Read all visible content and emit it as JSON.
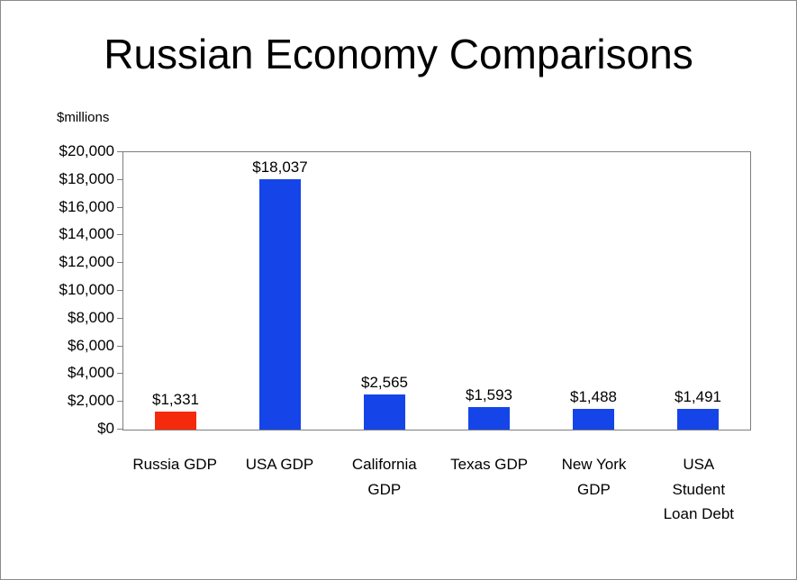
{
  "chart_data": {
    "type": "bar",
    "title": "Russian Economy Comparisons",
    "units_label": "$millions",
    "categories": [
      "Russia GDP",
      "USA GDP",
      "California GDP",
      "Texas GDP",
      "New York GDP",
      "USA Student Loan Debt"
    ],
    "category_display": [
      "Russia GDP",
      "USA GDP",
      "California\nGDP",
      "Texas GDP",
      "New York\nGDP",
      "USA\nStudent\nLoan Debt"
    ],
    "values": [
      1331,
      18037,
      2565,
      1593,
      1488,
      1491
    ],
    "value_labels": [
      "$1,331",
      "$18,037",
      "$2,565",
      "$1,593",
      "$1,488",
      "$1,491"
    ],
    "bar_colors": [
      "#f52a0c",
      "#1545e8",
      "#1545e8",
      "#1545e8",
      "#1545e8",
      "#1545e8"
    ],
    "ylim": [
      0,
      20000
    ],
    "y_ticks": [
      {
        "value": 0,
        "label": "$0"
      },
      {
        "value": 2000,
        "label": "$2,000"
      },
      {
        "value": 4000,
        "label": "$4,000"
      },
      {
        "value": 6000,
        "label": "$6,000"
      },
      {
        "value": 8000,
        "label": "$8,000"
      },
      {
        "value": 10000,
        "label": "$10,000"
      },
      {
        "value": 12000,
        "label": "$12,000"
      },
      {
        "value": 14000,
        "label": "$14,000"
      },
      {
        "value": 16000,
        "label": "$16,000"
      },
      {
        "value": 18000,
        "label": "$18,000"
      },
      {
        "value": 20000,
        "label": "$20,000"
      }
    ],
    "grid": false,
    "legend": false
  }
}
